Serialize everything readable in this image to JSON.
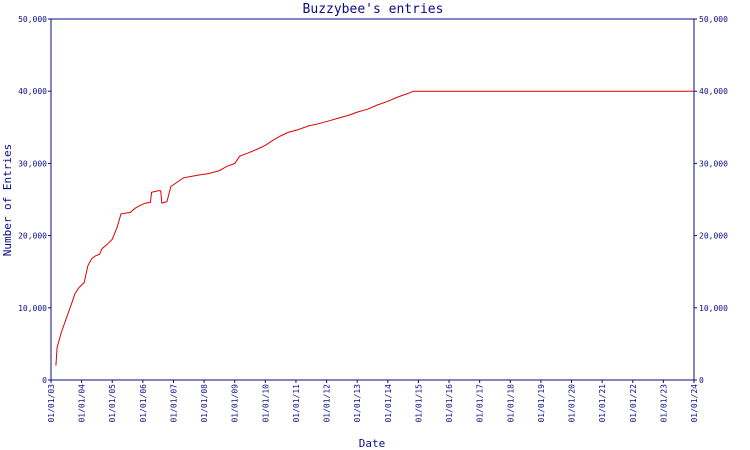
{
  "chart_data": {
    "type": "line",
    "title": "Buzzybee's entries",
    "xlabel": "Date",
    "ylabel": "Number of Entries",
    "ylim": [
      0,
      50000
    ],
    "y_ticks": [
      "0",
      "10,000",
      "20,000",
      "30,000",
      "40,000",
      "50,000"
    ],
    "x_ticks": [
      "01/01/03",
      "01/01/04",
      "01/01/05",
      "01/01/06",
      "01/01/07",
      "01/01/08",
      "01/01/09",
      "01/01/10",
      "01/01/11",
      "01/01/12",
      "01/01/13",
      "01/01/14",
      "01/01/15",
      "01/01/16",
      "01/01/17",
      "01/01/18",
      "01/01/19",
      "01/01/20",
      "01/01/21",
      "01/01/22",
      "01/01/23",
      "01/01/24"
    ],
    "xlim": [
      "2003-01-01",
      "2024-01-01"
    ],
    "grid": false,
    "right_axis": true,
    "series": [
      {
        "color": "#dd0000",
        "points": [
          [
            "2003-03-01",
            2000
          ],
          [
            "2003-03-15",
            4500
          ],
          [
            "2003-05-01",
            6500
          ],
          [
            "2003-07-01",
            8500
          ],
          [
            "2003-09-01",
            10500
          ],
          [
            "2003-10-15",
            12000
          ],
          [
            "2003-12-01",
            12800
          ],
          [
            "2004-02-01",
            13500
          ],
          [
            "2004-03-15",
            15800
          ],
          [
            "2004-05-01",
            16800
          ],
          [
            "2004-06-15",
            17200
          ],
          [
            "2004-08-01",
            17400
          ],
          [
            "2004-09-01",
            18200
          ],
          [
            "2004-11-01",
            18800
          ],
          [
            "2005-01-01",
            19500
          ],
          [
            "2005-03-01",
            21200
          ],
          [
            "2005-04-15",
            23000
          ],
          [
            "2005-06-01",
            23100
          ],
          [
            "2005-08-01",
            23200
          ],
          [
            "2005-10-01",
            23800
          ],
          [
            "2005-12-01",
            24200
          ],
          [
            "2006-02-01",
            24500
          ],
          [
            "2006-04-01",
            24600
          ],
          [
            "2006-04-15",
            26000
          ],
          [
            "2006-07-01",
            26200
          ],
          [
            "2006-08-01",
            26200
          ],
          [
            "2006-08-15",
            24500
          ],
          [
            "2006-10-15",
            24700
          ],
          [
            "2006-12-01",
            26800
          ],
          [
            "2007-02-01",
            27300
          ],
          [
            "2007-05-01",
            28000
          ],
          [
            "2007-08-01",
            28200
          ],
          [
            "2007-11-01",
            28400
          ],
          [
            "2008-03-01",
            28600
          ],
          [
            "2008-07-01",
            29000
          ],
          [
            "2008-10-01",
            29600
          ],
          [
            "2009-01-01",
            30000
          ],
          [
            "2009-03-01",
            31000
          ],
          [
            "2009-06-01",
            31400
          ],
          [
            "2009-10-01",
            32000
          ],
          [
            "2010-01-01",
            32500
          ],
          [
            "2010-04-01",
            33200
          ],
          [
            "2010-07-01",
            33800
          ],
          [
            "2010-10-01",
            34300
          ],
          [
            "2011-02-01",
            34700
          ],
          [
            "2011-06-01",
            35200
          ],
          [
            "2011-10-01",
            35500
          ],
          [
            "2012-02-01",
            35900
          ],
          [
            "2012-06-01",
            36300
          ],
          [
            "2012-10-01",
            36700
          ],
          [
            "2013-01-01",
            37100
          ],
          [
            "2013-05-01",
            37500
          ],
          [
            "2013-09-01",
            38100
          ],
          [
            "2014-01-01",
            38600
          ],
          [
            "2014-05-01",
            39200
          ],
          [
            "2014-09-01",
            39700
          ],
          [
            "2014-11-01",
            40000
          ],
          [
            "2024-01-01",
            40000
          ]
        ]
      }
    ]
  }
}
